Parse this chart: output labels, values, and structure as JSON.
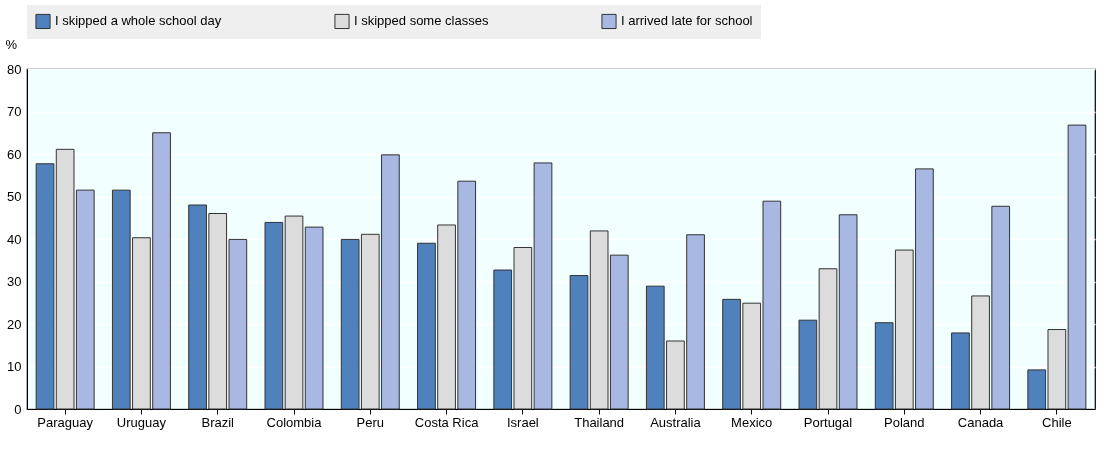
{
  "chart_data": {
    "type": "bar",
    "ylabel": "%",
    "categories": [
      "Paraguay",
      "Uruguay",
      "Brazil",
      "Colombia",
      "Peru",
      "Costa Rica",
      "Israel",
      "Thailand",
      "Australia",
      "Mexico",
      "Portugal",
      "Poland",
      "Canada",
      "Chile"
    ],
    "series": [
      {
        "name": "I skipped a whole school day",
        "color": "#4f81bd",
        "values": [
          57.7,
          51.5,
          48,
          43.9,
          39.9,
          39,
          32.7,
          31.4,
          28.9,
          25.8,
          20.9,
          20.3,
          17.9,
          9.2
        ]
      },
      {
        "name": "I skipped some classes",
        "color": "#dcdcdc",
        "values": [
          61.1,
          40.3,
          46,
          45.4,
          41.1,
          43.3,
          38,
          41.9,
          16,
          24.9,
          33,
          37.4,
          26.6,
          18.7
        ]
      },
      {
        "name": "I arrived late for school",
        "color": "#a8b8e2",
        "values": [
          51.5,
          65,
          39.9,
          42.8,
          59.8,
          53.6,
          57.9,
          36.2,
          41,
          48.9,
          45.7,
          56.5,
          47.7,
          66.8
        ]
      }
    ],
    "ylim": [
      0,
      80
    ],
    "yticks": [
      0,
      10,
      20,
      30,
      40,
      50,
      60,
      70,
      80
    ],
    "grid": "y",
    "legend": "top"
  }
}
